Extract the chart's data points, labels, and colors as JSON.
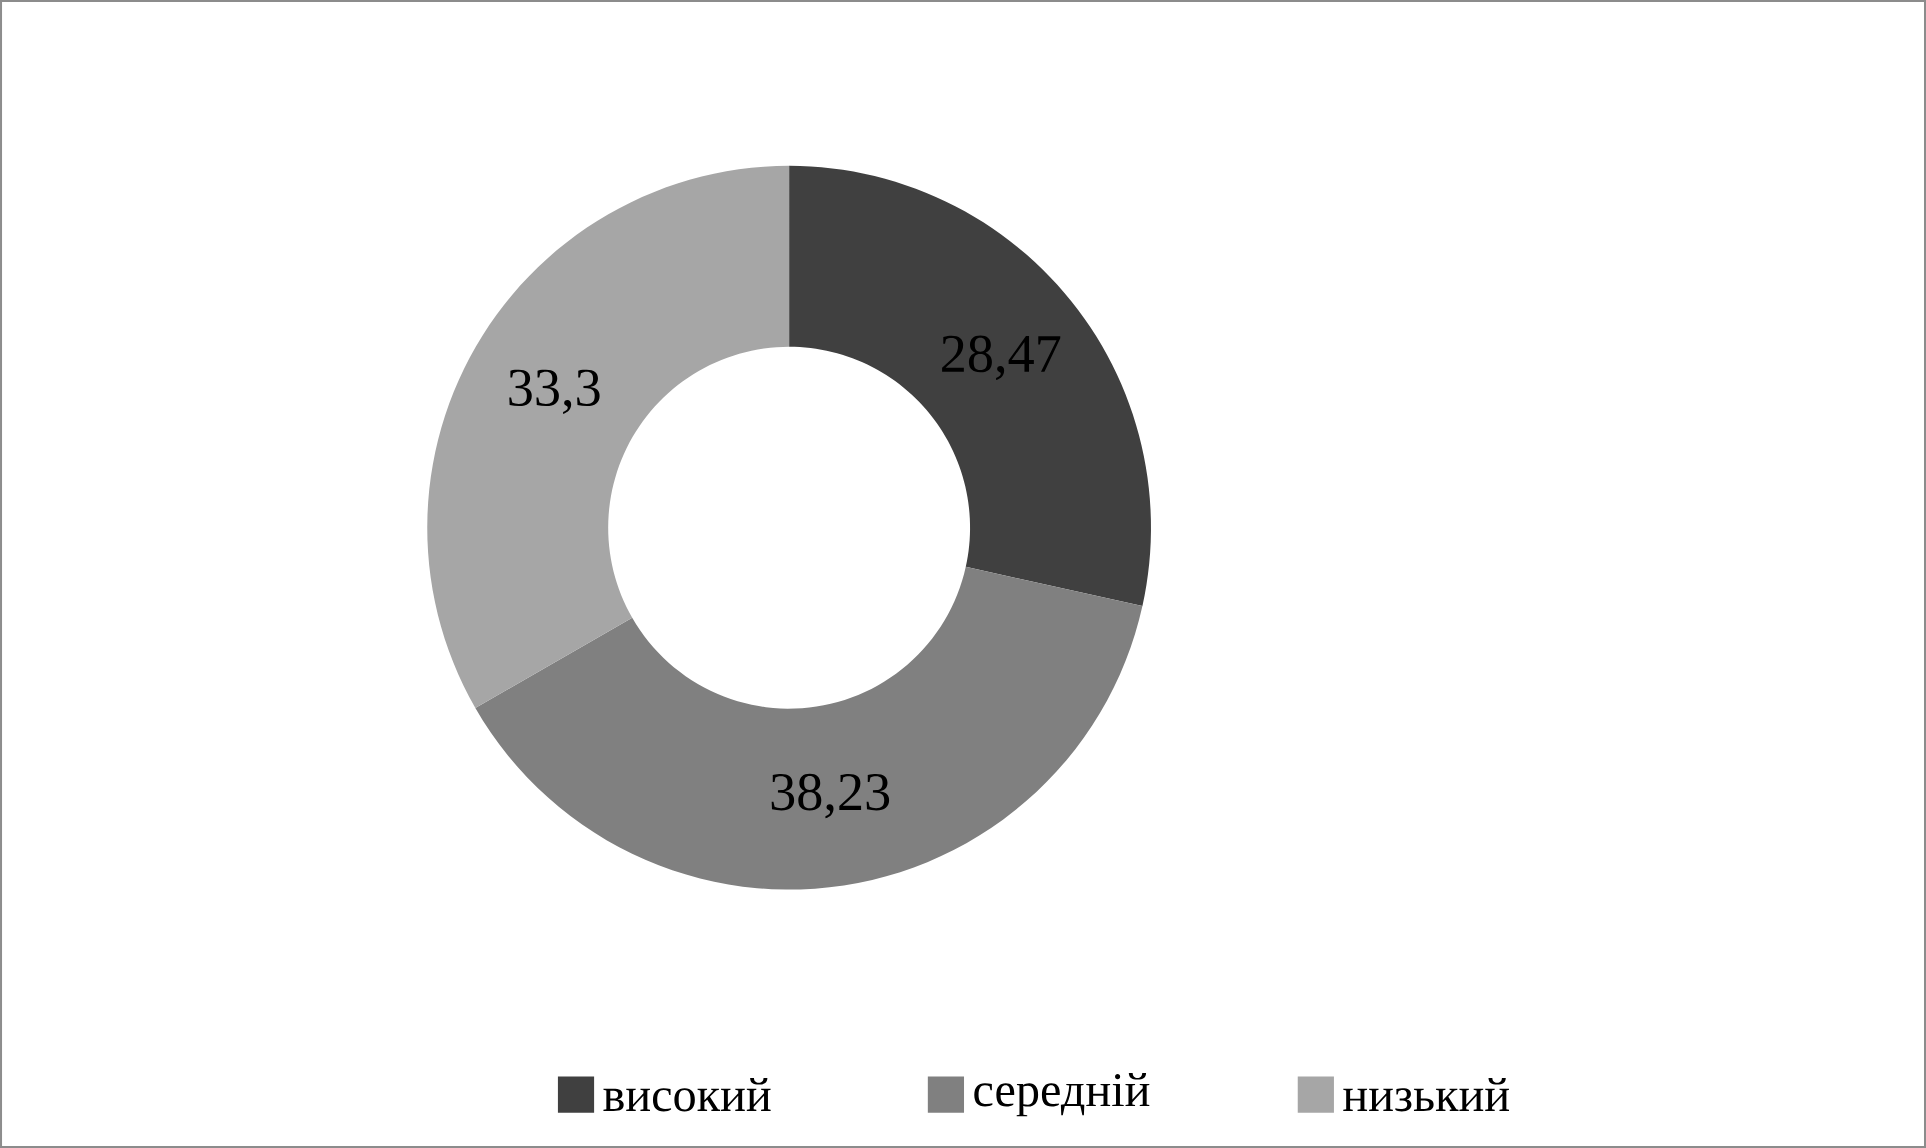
{
  "chart_data": {
    "type": "donut",
    "categories": [
      "високий",
      "середній",
      "низький"
    ],
    "values": [
      28.47,
      38.23,
      33.3
    ],
    "value_labels": [
      "28,47",
      "38,23",
      "33,3"
    ],
    "colors": [
      "#404040",
      "#808080",
      "#a6a6a6"
    ],
    "legend": "bottom"
  }
}
